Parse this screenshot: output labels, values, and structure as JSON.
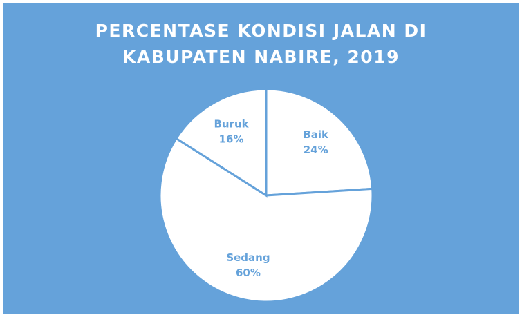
{
  "chart_data": {
    "type": "pie",
    "title": "PERCENTASE KONDISI JALAN DI KABUPATEN NABIRE, 2019",
    "categories": [
      "Baik",
      "Sedang",
      "Buruk"
    ],
    "values": [
      24,
      60,
      16
    ],
    "value_labels": [
      "24%",
      "60%",
      "16%"
    ],
    "color": "#ffffff",
    "background": "#65a2da"
  }
}
